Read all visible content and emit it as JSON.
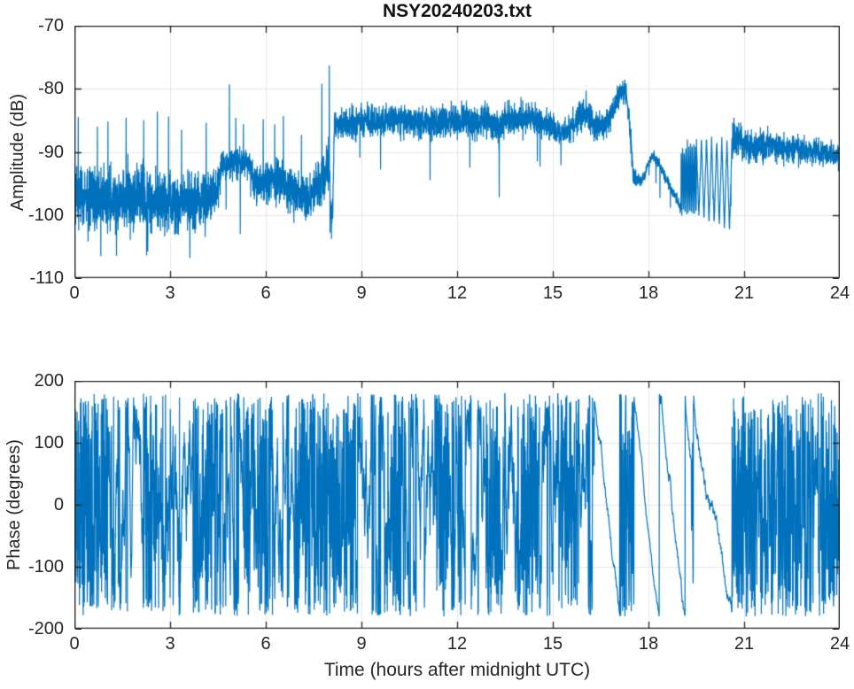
{
  "figure": {
    "title": "NSY20240203.txt",
    "background": "#ffffff"
  },
  "colors": {
    "line": "#0072BD",
    "grid": "#e6e6e6",
    "axis": "#262626",
    "text": "#262626"
  },
  "chart_data": [
    {
      "id": "amplitude",
      "type": "line",
      "title": "NSY20240203.txt",
      "ylabel": "Amplitude (dB)",
      "xlabel": "",
      "xlim": [
        0,
        24
      ],
      "ylim": [
        -110,
        -70
      ],
      "xticks": [
        0,
        3,
        6,
        9,
        12,
        15,
        18,
        21,
        24
      ],
      "yticks": [
        -110,
        -100,
        -90,
        -80,
        -70
      ],
      "grid": true,
      "series_color": "#0072BD",
      "sample_step_hours": 0.004,
      "noise_seed": 7,
      "downspike_prob": 0.004,
      "envelope": [
        [
          0.0,
          -97.0,
          4.8
        ],
        [
          0.8,
          -97.5,
          5.0
        ],
        [
          1.6,
          -97.0,
          5.2
        ],
        [
          2.4,
          -97.5,
          5.0
        ],
        [
          3.2,
          -98.0,
          4.8
        ],
        [
          4.2,
          -97.5,
          4.6
        ],
        [
          4.48,
          -96.0,
          4.0
        ],
        [
          4.6,
          -92.0,
          2.5
        ],
        [
          5.0,
          -91.6,
          2.6
        ],
        [
          5.5,
          -92.0,
          2.5
        ],
        [
          5.6,
          -94.5,
          3.2
        ],
        [
          6.0,
          -95.0,
          3.4
        ],
        [
          6.4,
          -94.3,
          3.4
        ],
        [
          6.8,
          -96.5,
          3.6
        ],
        [
          7.3,
          -97.5,
          3.6
        ],
        [
          7.6,
          -95.5,
          3.8
        ],
        [
          7.85,
          -93.5,
          4.2
        ],
        [
          7.99,
          -92.0,
          5.0
        ],
        [
          8.04,
          -100.0,
          2.2
        ],
        [
          8.1,
          -99.0,
          2.2
        ],
        [
          8.15,
          -85.8,
          2.6
        ],
        [
          9.0,
          -85.3,
          2.6
        ],
        [
          10.0,
          -84.9,
          2.6
        ],
        [
          11.0,
          -85.4,
          2.6
        ],
        [
          12.0,
          -84.9,
          2.6
        ],
        [
          13.0,
          -85.1,
          2.6
        ],
        [
          13.3,
          -86.2,
          3.0
        ],
        [
          13.6,
          -84.8,
          2.6
        ],
        [
          14.2,
          -84.7,
          2.6
        ],
        [
          14.8,
          -85.2,
          2.6
        ],
        [
          15.1,
          -86.9,
          2.3
        ],
        [
          15.55,
          -86.4,
          2.3
        ],
        [
          15.8,
          -84.2,
          2.6
        ],
        [
          16.1,
          -83.6,
          2.6
        ],
        [
          16.3,
          -86.0,
          2.2
        ],
        [
          16.6,
          -85.8,
          2.2
        ],
        [
          16.78,
          -84.5,
          2.2
        ],
        [
          16.95,
          -82.5,
          2.0
        ],
        [
          17.08,
          -81.0,
          1.9
        ],
        [
          17.18,
          -80.3,
          1.8
        ],
        [
          17.3,
          -80.6,
          1.8
        ],
        [
          17.38,
          -84.0,
          1.8
        ],
        [
          17.46,
          -89.0,
          1.7
        ],
        [
          17.52,
          -93.5,
          1.6
        ],
        [
          17.64,
          -94.5,
          1.3
        ],
        [
          17.74,
          -94.8,
          0.9
        ],
        [
          17.87,
          -93.8,
          0.8
        ],
        [
          18.0,
          -91.8,
          0.8
        ],
        [
          18.14,
          -90.4,
          0.8
        ],
        [
          18.32,
          -91.8,
          0.8
        ],
        [
          18.55,
          -94.3,
          0.8
        ],
        [
          18.75,
          -96.3,
          0.8
        ],
        [
          18.88,
          -97.3,
          0.8
        ],
        [
          19.0,
          -99.0,
          0.8
        ],
        [
          20.66,
          -87.5,
          2.8
        ],
        [
          21.0,
          -88.8,
          2.6
        ],
        [
          21.8,
          -89.2,
          2.4
        ],
        [
          22.6,
          -89.6,
          2.2
        ],
        [
          23.3,
          -90.0,
          2.0
        ],
        [
          24.0,
          -90.8,
          1.8
        ]
      ],
      "oscillations": [
        {
          "t0": 19.02,
          "t1": 19.5,
          "hi": -88.5,
          "lo": -100.0,
          "lo_end": -100.0,
          "period": 0.05,
          "noise": 0.6
        },
        {
          "t0": 19.5,
          "t1": 20.64,
          "hi": -88.0,
          "lo": -100.0,
          "lo_end": -103.0,
          "period": 0.16,
          "noise": 0.6
        }
      ],
      "spikes": [
        [
          0.12,
          -84.5
        ],
        [
          0.72,
          -86.0
        ],
        [
          1.05,
          -85.2
        ],
        [
          1.62,
          -84.6
        ],
        [
          2.17,
          -85.0
        ],
        [
          2.6,
          -83.6
        ],
        [
          2.95,
          -84.4
        ],
        [
          3.36,
          -86.5
        ],
        [
          4.13,
          -85.4
        ],
        [
          4.86,
          -79.3
        ],
        [
          5.06,
          -84.6
        ],
        [
          5.3,
          -85.6
        ],
        [
          5.92,
          -84.8
        ],
        [
          6.28,
          -85.6
        ],
        [
          6.55,
          -84.3
        ],
        [
          7.12,
          -87.3
        ],
        [
          7.76,
          -79.2
        ],
        [
          7.99,
          -76.3
        ],
        [
          20.68,
          -84.6
        ],
        [
          1.32,
          -106.5
        ],
        [
          2.3,
          -105.8
        ],
        [
          3.62,
          -106.8
        ],
        [
          5.2,
          -103.0
        ],
        [
          8.06,
          -103.8
        ],
        [
          9.6,
          -92.8
        ],
        [
          11.15,
          -94.5
        ],
        [
          12.4,
          -92.5
        ],
        [
          13.32,
          -97.2
        ],
        [
          14.6,
          -92.3
        ]
      ]
    },
    {
      "id": "phase",
      "type": "line",
      "ylabel": "Phase (degrees)",
      "xlabel": "Time (hours after midnight UTC)",
      "xlim": [
        0,
        24
      ],
      "ylim": [
        -200,
        200
      ],
      "xticks": [
        0,
        3,
        6,
        9,
        12,
        15,
        18,
        21,
        24
      ],
      "yticks": [
        -200,
        -100,
        0,
        100,
        200
      ],
      "grid": true,
      "series_color": "#0072BD",
      "wrap_limit_degrees": 180,
      "sample_step_hours": 0.006,
      "noise_seed": 3,
      "segments": [
        {
          "t0": 0.0,
          "t1": 0.55,
          "mode": "noise",
          "step": 230
        },
        {
          "t0": 0.55,
          "t1": 1.0,
          "mode": "noise",
          "step": 150
        },
        {
          "t0": 1.0,
          "t1": 1.5,
          "mode": "noise",
          "step": 85
        },
        {
          "t0": 1.5,
          "t1": 2.2,
          "mode": "noise",
          "step": 48
        },
        {
          "t0": 2.2,
          "t1": 2.75,
          "mode": "noise",
          "step": 160
        },
        {
          "t0": 2.75,
          "t1": 3.3,
          "mode": "noise",
          "step": 85
        },
        {
          "t0": 3.3,
          "t1": 3.7,
          "mode": "noise",
          "step": 50
        },
        {
          "t0": 3.7,
          "t1": 4.35,
          "mode": "noise",
          "step": 170
        },
        {
          "t0": 4.35,
          "t1": 4.8,
          "mode": "noise",
          "step": 90
        },
        {
          "t0": 4.8,
          "t1": 5.3,
          "mode": "noise",
          "step": 50
        },
        {
          "t0": 5.3,
          "t1": 6.3,
          "mode": "noise",
          "step": 130
        },
        {
          "t0": 6.3,
          "t1": 6.9,
          "mode": "noise",
          "step": 55
        },
        {
          "t0": 6.9,
          "t1": 8.15,
          "mode": "noise",
          "step": 175
        },
        {
          "t0": 8.15,
          "t1": 8.8,
          "mode": "noise",
          "step": 185
        },
        {
          "t0": 8.8,
          "t1": 9.7,
          "mode": "noise",
          "step": 55
        },
        {
          "t0": 9.7,
          "t1": 10.4,
          "mode": "noise",
          "step": 140
        },
        {
          "t0": 10.4,
          "t1": 11.3,
          "mode": "noise",
          "step": 50
        },
        {
          "t0": 11.3,
          "t1": 11.75,
          "mode": "noise",
          "step": 175
        },
        {
          "t0": 11.75,
          "t1": 12.2,
          "mode": "noise",
          "step": 85
        },
        {
          "t0": 12.2,
          "t1": 12.9,
          "mode": "noise",
          "step": 48
        },
        {
          "t0": 12.9,
          "t1": 13.35,
          "mode": "noise",
          "step": 165
        },
        {
          "t0": 13.35,
          "t1": 14.0,
          "mode": "noise",
          "step": 75
        },
        {
          "t0": 14.0,
          "t1": 14.55,
          "mode": "noise",
          "step": 175
        },
        {
          "t0": 14.55,
          "t1": 15.15,
          "mode": "noise",
          "step": 70
        },
        {
          "t0": 15.15,
          "t1": 15.8,
          "mode": "noise",
          "step": 160
        },
        {
          "t0": 15.8,
          "t1": 16.3,
          "mode": "noise",
          "step": 70
        },
        {
          "t0": 16.3,
          "t1": 17.15,
          "mode": "ramp",
          "slope": -420,
          "start": 175,
          "jitter": 6
        },
        {
          "t0": 17.15,
          "t1": 17.55,
          "mode": "noise",
          "step": 150
        },
        {
          "t0": 17.55,
          "t1": 18.38,
          "mode": "ramp",
          "slope": -433,
          "start": 178,
          "jitter": 4
        },
        {
          "t0": 18.38,
          "t1": 19.35,
          "mode": "ramp",
          "slope": -372,
          "start": 178,
          "jitter": 6
        },
        {
          "t0": 19.35,
          "t1": 19.42,
          "mode": "noise",
          "step": 140
        },
        {
          "t0": 19.42,
          "t1": 20.62,
          "mode": "ramp",
          "slope": -300,
          "start": 178,
          "jitter": 7
        },
        {
          "t0": 20.62,
          "t1": 21.3,
          "mode": "noise",
          "step": 190
        },
        {
          "t0": 21.3,
          "t1": 22.2,
          "mode": "noise",
          "step": 110
        },
        {
          "t0": 22.2,
          "t1": 22.9,
          "mode": "noise",
          "step": 180
        },
        {
          "t0": 22.9,
          "t1": 23.4,
          "mode": "noise",
          "step": 90
        },
        {
          "t0": 23.4,
          "t1": 24.001,
          "mode": "noise",
          "step": 200
        }
      ]
    }
  ]
}
